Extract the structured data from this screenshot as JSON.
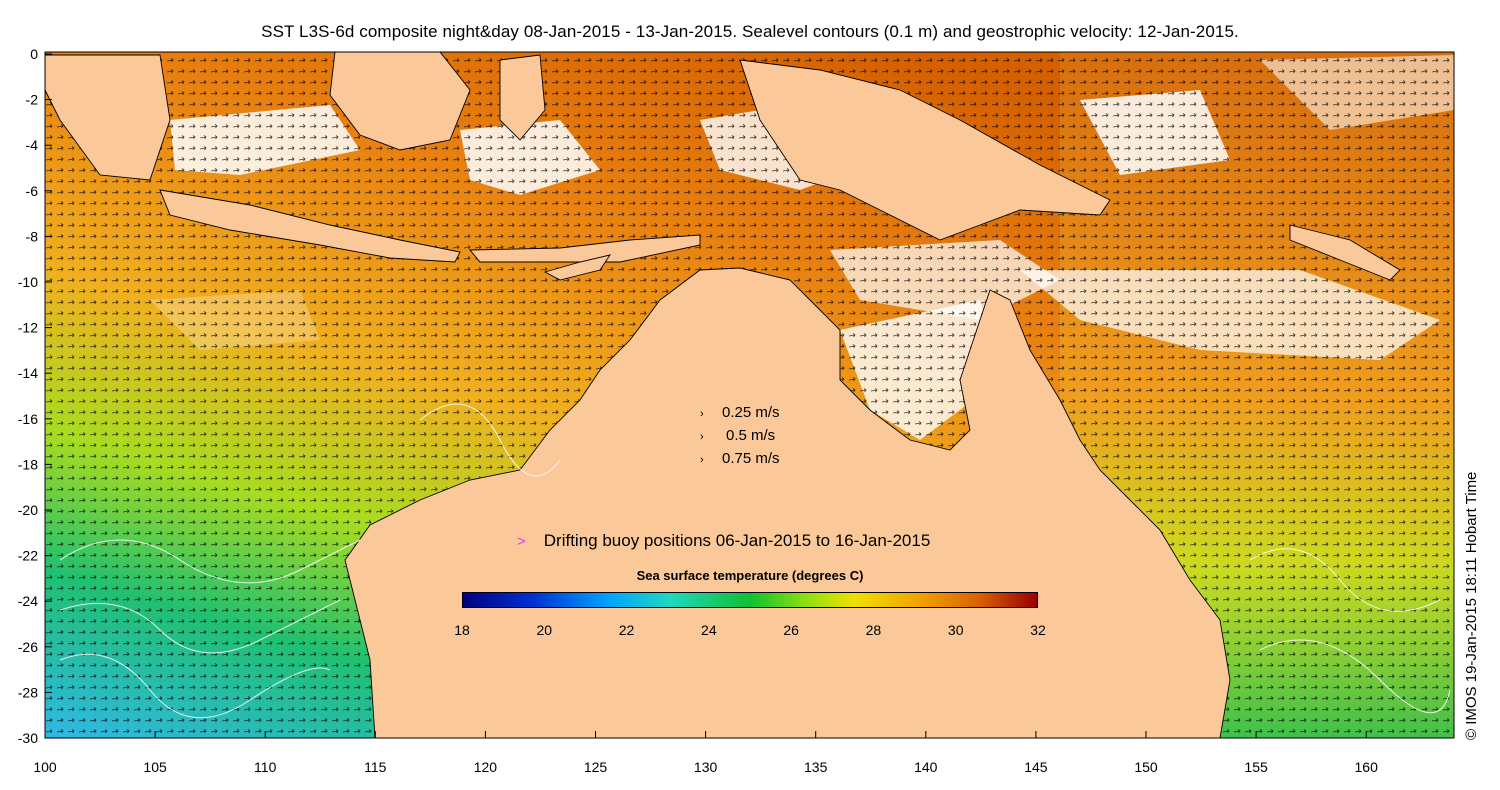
{
  "title": "SST L3S-6d composite night&day 08-Jan-2015 - 13-Jan-2015. Sealevel contours (0.1 m) and geostrophic velocity: 12-Jan-2015.",
  "credit": "© IMOS 19-Jan-2015 18:11 Hobart Time",
  "axes": {
    "y_ticks": [
      "0",
      "-2",
      "-4",
      "-6",
      "-8",
      "-10",
      "-12",
      "-14",
      "-16",
      "-18",
      "-20",
      "-22",
      "-24",
      "-26",
      "-28",
      "-30"
    ],
    "x_ticks": [
      "100",
      "105",
      "110",
      "115",
      "120",
      "125",
      "130",
      "135",
      "140",
      "145",
      "150",
      "155",
      "160"
    ]
  },
  "velocity_key": [
    {
      "label": "0.25 m/s",
      "arrow": "›"
    },
    {
      "label": "0.5 m/s",
      "arrow": "›"
    },
    {
      "label": "0.75 m/s",
      "arrow": "›"
    }
  ],
  "buoy_legend": {
    "marker": ">",
    "label": "Drifting buoy positions 06-Jan-2015 to 16-Jan-2015",
    "color": "#e040e0"
  },
  "colorbar": {
    "title": "Sea surface temperature (degrees C)",
    "ticks": [
      "18",
      "20",
      "22",
      "24",
      "26",
      "28",
      "30",
      "32"
    ],
    "min": 18,
    "max": 32
  },
  "colors": {
    "land": "#fbc89a",
    "cloud": "#ffffff"
  }
}
